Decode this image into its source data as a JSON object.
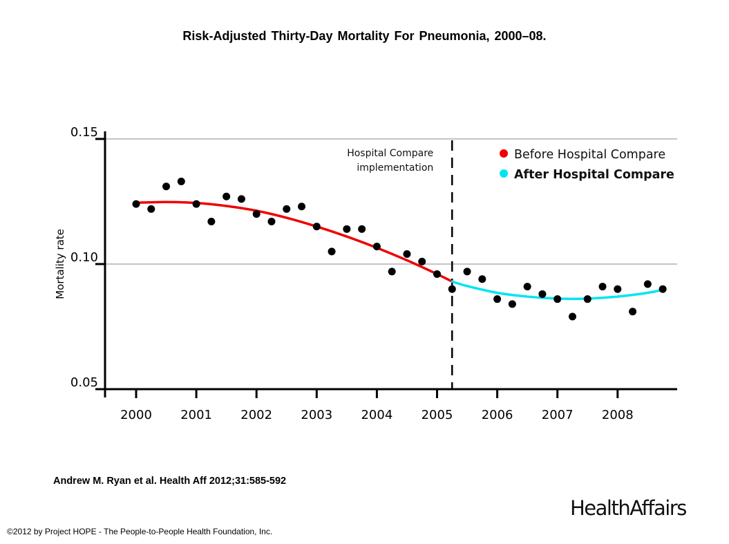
{
  "header": {
    "title": "Risk-Adjusted Thirty-Day Mortality For Pneumonia, 2000–08."
  },
  "footer": {
    "citation": "Andrew M. Ryan et al. Health Aff 2012;31:585-592",
    "copyright": "©2012 by Project HOPE - The People-to-People Health Foundation, Inc.",
    "logo": "HealthAffairs"
  },
  "chart_data": {
    "type": "scatter",
    "title": "Risk-Adjusted Thirty-Day Mortality For Pneumonia, 2000–08.",
    "xlabel": "",
    "ylabel": "Mortality rate",
    "xlim": [
      1999.5,
      2008.95
    ],
    "ylim": [
      0.05,
      0.15
    ],
    "x_ticks": [
      2000,
      2001,
      2002,
      2003,
      2004,
      2005,
      2006,
      2007,
      2008
    ],
    "x_tick_labels": [
      "2000",
      "2001",
      "2002",
      "2003",
      "2004",
      "2005",
      "2006",
      "2007",
      "2008"
    ],
    "y_ticks": [
      0.05,
      0.1,
      0.15
    ],
    "y_tick_labels": [
      "0.05",
      "0.10",
      "0.15"
    ],
    "gridlines_y": [
      0.1,
      0.15
    ],
    "legend": {
      "placement": "top-right",
      "entries": [
        {
          "label": "Before Hospital Compare",
          "color": "#ee0000"
        },
        {
          "label": "After Hospital Compare",
          "color": "#00e5f0"
        }
      ]
    },
    "annotation": {
      "x": 2005.25,
      "lines": [
        "Hospital Compare",
        "implementation"
      ],
      "style": "dashed-vertical"
    },
    "points": {
      "x": [
        2000.0,
        2000.25,
        2000.5,
        2000.75,
        2001.0,
        2001.25,
        2001.5,
        2001.75,
        2002.0,
        2002.25,
        2002.5,
        2002.75,
        2003.0,
        2003.25,
        2003.5,
        2003.75,
        2004.0,
        2004.25,
        2004.5,
        2004.75,
        2005.0,
        2005.25,
        2005.5,
        2005.75,
        2006.0,
        2006.25,
        2006.5,
        2006.75,
        2007.0,
        2007.25,
        2007.5,
        2007.75,
        2008.0,
        2008.25,
        2008.5,
        2008.75
      ],
      "y": [
        0.124,
        0.122,
        0.131,
        0.133,
        0.124,
        0.117,
        0.127,
        0.126,
        0.12,
        0.117,
        0.122,
        0.123,
        0.115,
        0.105,
        0.114,
        0.114,
        0.107,
        0.097,
        0.104,
        0.101,
        0.096,
        0.09,
        0.097,
        0.094,
        0.086,
        0.084,
        0.091,
        0.088,
        0.086,
        0.079,
        0.086,
        0.091,
        0.09,
        0.081,
        0.092,
        0.09
      ],
      "color": "#000000"
    },
    "series": [
      {
        "name": "Before Hospital Compare",
        "type": "line",
        "color": "#ee0000",
        "x": [
          2000.0,
          2000.5,
          2001.0,
          2001.5,
          2002.0,
          2002.5,
          2003.0,
          2003.5,
          2004.0,
          2004.5,
          2005.0,
          2005.25
        ],
        "y": [
          0.1245,
          0.1248,
          0.1244,
          0.1232,
          0.1213,
          0.1185,
          0.115,
          0.111,
          0.1065,
          0.1015,
          0.096,
          0.093
        ]
      },
      {
        "name": "After Hospital Compare",
        "type": "line",
        "color": "#00e5f0",
        "x": [
          2005.25,
          2005.5,
          2006.0,
          2006.5,
          2007.0,
          2007.5,
          2008.0,
          2008.5,
          2008.75
        ],
        "y": [
          0.093,
          0.0912,
          0.0885,
          0.087,
          0.0862,
          0.0862,
          0.087,
          0.0885,
          0.0897
        ]
      }
    ]
  }
}
